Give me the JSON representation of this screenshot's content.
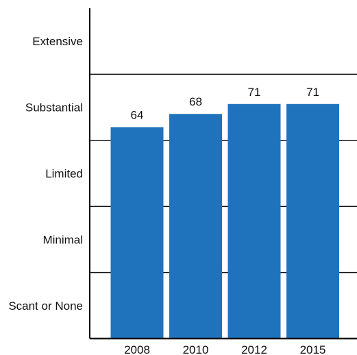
{
  "chart_data": {
    "type": "bar",
    "title": "",
    "xlabel": "",
    "ylabel": "",
    "categories": [
      "2008",
      "2010",
      "2012",
      "2015"
    ],
    "values": [
      64,
      68,
      71,
      71
    ],
    "y_scale_categories": [
      "Scant or None",
      "Minimal",
      "Limited",
      "Substantial",
      "Extensive"
    ],
    "ylim": [
      0,
      100
    ],
    "grid": true,
    "legend": "none",
    "bar_color": "#1f73bd",
    "axis_color": "#111111"
  }
}
